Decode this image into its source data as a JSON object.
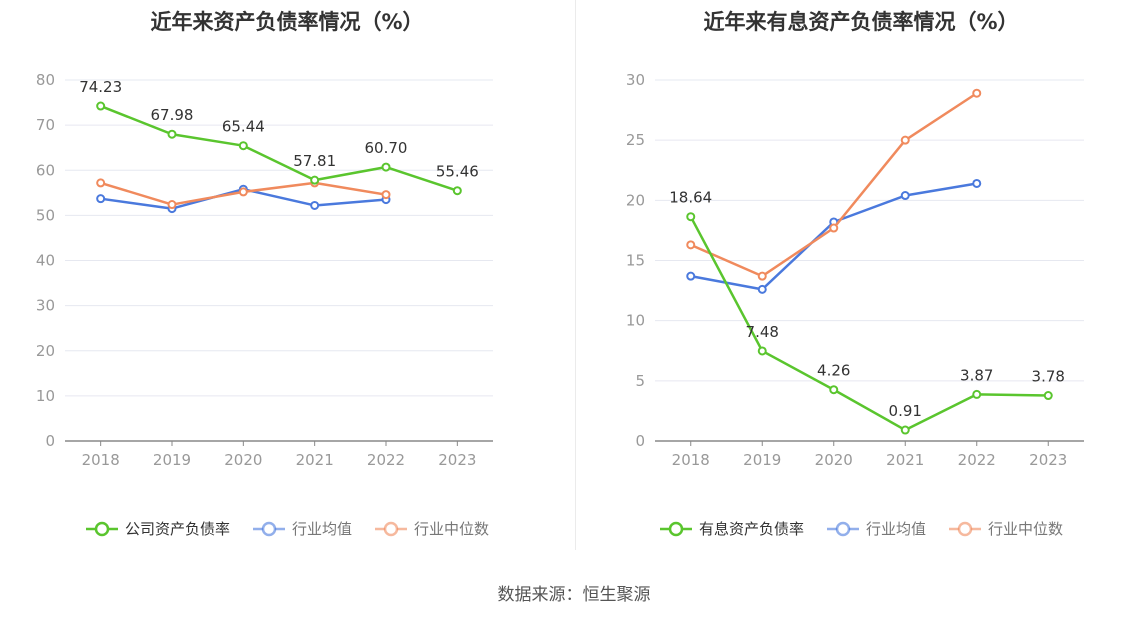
{
  "source_label": "数据来源：恒生聚源",
  "colors": {
    "company": "#5ac52e",
    "avg": "#4a79dd",
    "median": "#f08a5d",
    "grid": "#e6e8f0",
    "axis": "#999999"
  },
  "chart_data": [
    {
      "type": "line",
      "title": "近年来资产负债率情况（%）",
      "categories": [
        "2018",
        "2019",
        "2020",
        "2021",
        "2022",
        "2023"
      ],
      "ylim": [
        0,
        80
      ],
      "yticks": [
        "0",
        "10",
        "20",
        "30",
        "40",
        "50",
        "60",
        "70",
        "80"
      ],
      "series": [
        {
          "name": "公司资产负债率",
          "key": "company",
          "values": [
            74.23,
            67.98,
            65.44,
            57.81,
            60.7,
            55.46
          ],
          "labels": [
            "74.23",
            "67.98",
            "65.44",
            "57.81",
            "60.70",
            "55.46"
          ]
        },
        {
          "name": "行业均值",
          "key": "avg",
          "values": [
            53.7,
            51.5,
            55.8,
            52.2,
            53.5,
            null
          ]
        },
        {
          "name": "行业中位数",
          "key": "median",
          "values": [
            57.2,
            52.4,
            55.2,
            57.2,
            54.6,
            null
          ]
        }
      ]
    },
    {
      "type": "line",
      "title": "近年来有息资产负债率情况（%）",
      "categories": [
        "2018",
        "2019",
        "2020",
        "2021",
        "2022",
        "2023"
      ],
      "ylim": [
        0,
        30
      ],
      "yticks": [
        "0",
        "5",
        "10",
        "15",
        "20",
        "25",
        "30"
      ],
      "series": [
        {
          "name": "有息资产负债率",
          "key": "company",
          "values": [
            18.64,
            7.48,
            4.26,
            0.91,
            3.87,
            3.78
          ],
          "labels": [
            "18.64",
            "7.48",
            "4.26",
            "0.91",
            "3.87",
            "3.78"
          ]
        },
        {
          "name": "行业均值",
          "key": "avg",
          "values": [
            13.7,
            12.6,
            18.2,
            20.4,
            21.4,
            null
          ]
        },
        {
          "name": "行业中位数",
          "key": "median",
          "values": [
            16.3,
            13.7,
            17.7,
            25.0,
            28.9,
            null
          ]
        }
      ]
    }
  ]
}
